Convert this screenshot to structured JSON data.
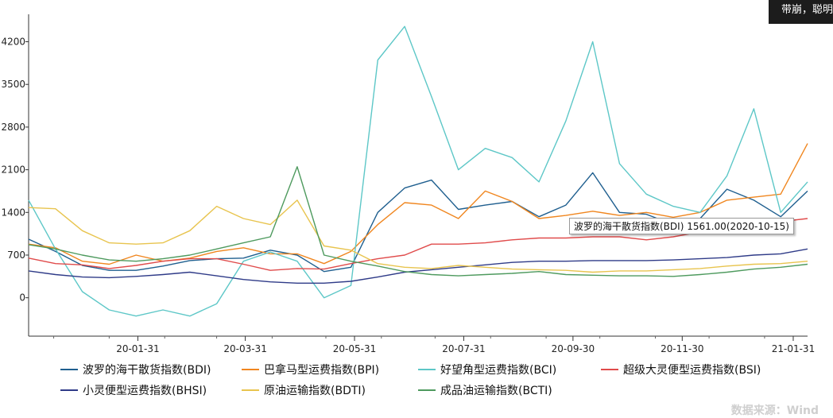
{
  "corner_text": "带崩，聪明",
  "source": "数据来源：Wind",
  "tooltip": "波罗的海干散货指数(BDI) 1561.00(2020-10-15)",
  "chart_data": {
    "type": "line",
    "x_tick_labels": [
      "20-01-31",
      "20-03-31",
      "20-05-31",
      "20-07-31",
      "20-09-30",
      "20-11-30",
      "21-01-31"
    ],
    "y_ticks": [
      0,
      700,
      1400,
      2100,
      2800,
      3500,
      4200
    ],
    "ylim": [
      -630,
      4650
    ],
    "x": [
      "2019-12-01",
      "2019-12-16",
      "2019-12-31",
      "2020-01-15",
      "2020-01-30",
      "2020-02-14",
      "2020-02-29",
      "2020-03-15",
      "2020-03-30",
      "2020-04-14",
      "2020-04-29",
      "2020-05-14",
      "2020-05-29",
      "2020-06-13",
      "2020-06-28",
      "2020-07-13",
      "2020-07-28",
      "2020-08-12",
      "2020-08-27",
      "2020-09-11",
      "2020-09-26",
      "2020-10-11",
      "2020-10-26",
      "2020-11-10",
      "2020-11-25",
      "2020-12-10",
      "2020-12-25",
      "2021-01-09",
      "2021-01-24",
      "2021-02-08"
    ],
    "series": [
      {
        "name": "波罗的海干散货指数(BDI)",
        "color": "#1f5f8f",
        "values": [
          960,
          760,
          530,
          450,
          450,
          520,
          610,
          640,
          650,
          780,
          700,
          430,
          500,
          1400,
          1800,
          1930,
          1450,
          1520,
          1580,
          1330,
          1520,
          2050,
          1400,
          1370,
          1200,
          1300,
          1780,
          1600,
          1330,
          1750
        ]
      },
      {
        "name": "巴拿马型运费指数(BPI)",
        "color": "#f0861f",
        "values": [
          880,
          820,
          600,
          550,
          700,
          600,
          650,
          760,
          820,
          720,
          720,
          560,
          760,
          1200,
          1560,
          1520,
          1300,
          1750,
          1580,
          1300,
          1350,
          1420,
          1350,
          1400,
          1320,
          1400,
          1600,
          1650,
          1700,
          2530
        ]
      },
      {
        "name": "好望角型运费指数(BCI)",
        "color": "#5dc7c7",
        "values": [
          1600,
          800,
          100,
          -200,
          -300,
          -200,
          -300,
          -100,
          600,
          750,
          600,
          0,
          200,
          3900,
          4450,
          3300,
          2100,
          2450,
          2300,
          1900,
          2900,
          4200,
          2200,
          1700,
          1500,
          1400,
          2000,
          3100,
          1400,
          1900
        ]
      },
      {
        "name": "超级大灵便型运费指数(BSI)",
        "color": "#e04b4b",
        "values": [
          650,
          560,
          540,
          480,
          530,
          600,
          640,
          640,
          550,
          450,
          480,
          470,
          560,
          640,
          700,
          880,
          880,
          900,
          950,
          980,
          980,
          1000,
          1000,
          950,
          1000,
          1080,
          1150,
          1200,
          1250,
          1300
        ]
      },
      {
        "name": "小灵便型运费指数(BHSI)",
        "color": "#2f3b88",
        "values": [
          440,
          380,
          340,
          330,
          350,
          380,
          420,
          360,
          300,
          260,
          240,
          240,
          270,
          340,
          420,
          460,
          500,
          540,
          580,
          600,
          600,
          610,
          610,
          610,
          620,
          640,
          660,
          700,
          720,
          800
        ]
      },
      {
        "name": "原油运输指数(BDTI)",
        "color": "#e8c44e",
        "values": [
          1480,
          1460,
          1100,
          900,
          880,
          900,
          1100,
          1500,
          1300,
          1200,
          1600,
          850,
          780,
          560,
          500,
          480,
          530,
          500,
          470,
          460,
          450,
          420,
          440,
          440,
          460,
          480,
          520,
          550,
          560,
          600
        ]
      },
      {
        "name": "成品油运输指数(BCTI)",
        "color": "#4e9a5e",
        "values": [
          870,
          800,
          700,
          620,
          600,
          640,
          700,
          800,
          900,
          1000,
          2150,
          700,
          600,
          520,
          430,
          380,
          360,
          380,
          400,
          430,
          380,
          370,
          360,
          360,
          350,
          380,
          420,
          470,
          500,
          550
        ]
      }
    ]
  }
}
